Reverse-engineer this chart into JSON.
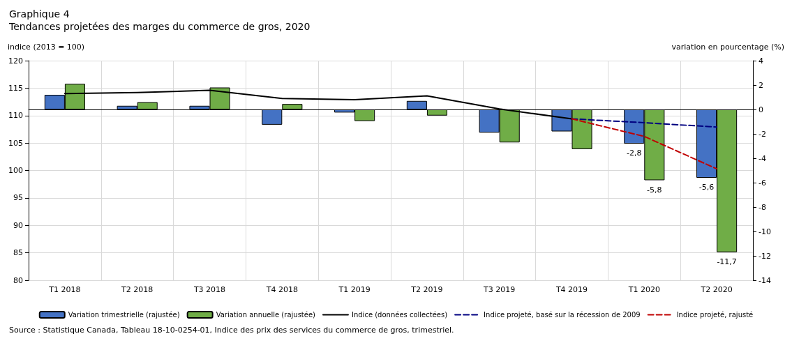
{
  "chart_data": {
    "type": "bar",
    "title": "Graphique 4",
    "subtitle": "Tendances projetées des marges du commerce de gros, 2020",
    "ylabel": "indice (2013 = 100)",
    "y2label": "variation en pourcentage (%)",
    "categories": [
      "T1 2018",
      "T2 2018",
      "T3 2018",
      "T4 2018",
      "T1 2019",
      "T2 2019",
      "T3 2019",
      "T4 2019",
      "T1 2020",
      "T2 2020"
    ],
    "series": [
      {
        "name": "Variation trimestrielle (rajustée)",
        "axis": "y2",
        "color": "#4472c4",
        "values": [
          1.2,
          0.3,
          0.3,
          -1.25,
          -0.25,
          0.7,
          -1.9,
          -1.8,
          -2.8,
          -5.6
        ],
        "value_labels": [
          null,
          null,
          null,
          null,
          null,
          null,
          null,
          null,
          "-2,8",
          "-5,6"
        ]
      },
      {
        "name": "Variation annuelle (rajustée)",
        "axis": "y2",
        "color": "#70ad47",
        "values": [
          2.1,
          0.6,
          1.8,
          0.45,
          -0.95,
          -0.5,
          -2.7,
          -3.25,
          -5.8,
          -11.7
        ],
        "value_labels": [
          null,
          null,
          null,
          null,
          null,
          null,
          null,
          null,
          "-5,8",
          "-11,7"
        ]
      },
      {
        "name": "Indice (données collectées)",
        "type": "line",
        "color": "#000000",
        "line_style": "solid",
        "values": [
          114.0,
          114.2,
          114.6,
          113.1,
          112.9,
          113.6,
          111.2,
          109.4,
          null,
          null
        ]
      },
      {
        "name": "Indice projeté, basé sur la récession de 2009",
        "type": "line",
        "color": "#000080",
        "line_style": "dashed",
        "values": [
          null,
          null,
          null,
          null,
          null,
          null,
          null,
          109.4,
          108.7,
          107.9
        ]
      },
      {
        "name": "Indice projeté, rajusté",
        "type": "line",
        "color": "#c00000",
        "line_style": "dashed",
        "values": [
          null,
          null,
          null,
          null,
          null,
          null,
          null,
          109.4,
          106.2,
          100.3
        ]
      }
    ],
    "ylim": [
      80,
      120
    ],
    "yticks": [
      80,
      85,
      90,
      95,
      100,
      105,
      110,
      115,
      120
    ],
    "y2lim": [
      -14,
      4
    ],
    "y2ticks": [
      -14,
      -12,
      -10,
      -8,
      -6,
      -4,
      -2,
      0,
      2,
      4
    ],
    "grid": true,
    "legend": "bottom",
    "marker": "none",
    "annotations": [
      "Source : Statistique Canada, Tableau 18-10-0254-01, Indice des prix des services du commerce de gros, trimestriel."
    ]
  }
}
